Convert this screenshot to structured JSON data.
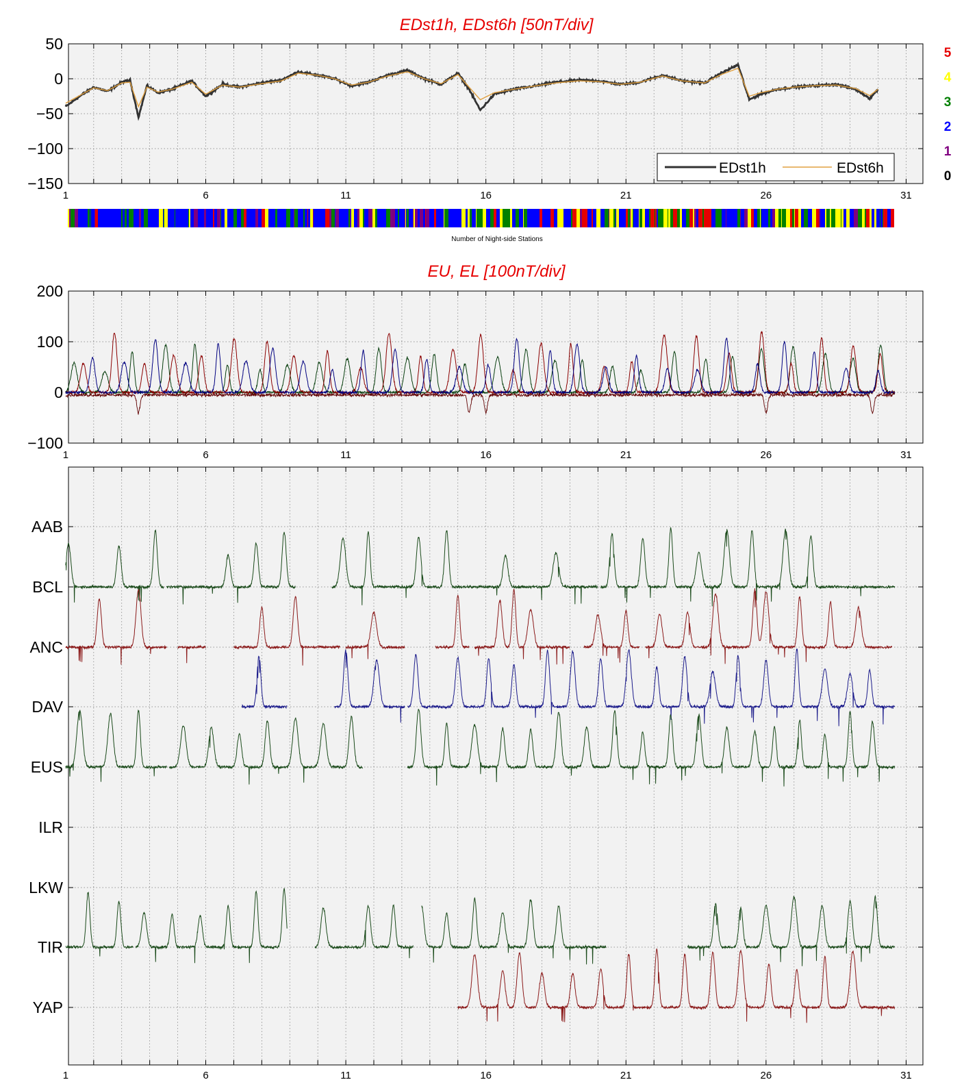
{
  "chart_data": [
    {
      "type": "line",
      "title": "EDst1h, EDst6h [50nT/div]",
      "ylim": [
        -150,
        50
      ],
      "yticks": [
        "50",
        "0",
        "−50",
        "−100",
        "−150"
      ],
      "xlim": [
        1,
        31
      ],
      "xticks": [
        "1",
        "6",
        "11",
        "16",
        "21",
        "26",
        "31"
      ],
      "grid": true,
      "legend": {
        "position": "bottom-right",
        "entries": [
          "EDst1h",
          "EDst6h"
        ]
      },
      "series": [
        {
          "name": "EDst1h",
          "color": "#333333",
          "x": [
            1,
            1.5,
            2,
            2.5,
            3,
            3.3,
            3.6,
            3.9,
            4.3,
            4.8,
            5.5,
            6,
            6.6,
            7.2,
            8,
            8.7,
            9.3,
            10,
            10.6,
            11.2,
            11.8,
            12.5,
            13.2,
            13.8,
            14.4,
            15,
            15.4,
            15.8,
            16.3,
            17,
            17.8,
            18.5,
            19.3,
            20,
            20.8,
            21.5,
            22.3,
            23,
            23.8,
            24.4,
            25,
            25.4,
            25.8,
            26.4,
            27,
            27.7,
            28.5,
            29.2,
            29.7,
            30
          ],
          "y": [
            -40,
            -25,
            -12,
            -18,
            -5,
            -2,
            -55,
            -10,
            -20,
            -15,
            -3,
            -25,
            -8,
            -12,
            -6,
            -2,
            10,
            5,
            0,
            -10,
            -5,
            5,
            12,
            0,
            -8,
            8,
            -15,
            -45,
            -22,
            -15,
            -10,
            -5,
            -2,
            -3,
            -8,
            -5,
            5,
            -3,
            -6,
            8,
            20,
            -30,
            -22,
            -15,
            -12,
            -10,
            -8,
            -15,
            -28,
            -15
          ]
        },
        {
          "name": "EDst6h",
          "color": "#e0a040",
          "x": [
            1,
            1.5,
            2,
            2.5,
            3,
            3.3,
            3.6,
            3.9,
            4.3,
            4.8,
            5.5,
            6,
            6.6,
            7.2,
            8,
            8.7,
            9.3,
            10,
            10.6,
            11.2,
            11.8,
            12.5,
            13.2,
            13.8,
            14.4,
            15,
            15.4,
            15.8,
            16.3,
            17,
            17.8,
            18.5,
            19.3,
            20,
            20.8,
            21.5,
            22.3,
            23,
            23.8,
            24.4,
            25,
            25.4,
            25.8,
            26.4,
            27,
            27.7,
            28.5,
            29.2,
            29.7,
            30
          ],
          "y": [
            -35,
            -24,
            -13,
            -17,
            -6,
            -5,
            -40,
            -12,
            -19,
            -15,
            -5,
            -22,
            -9,
            -12,
            -7,
            -3,
            8,
            5,
            0,
            -9,
            -5,
            4,
            10,
            0,
            -7,
            6,
            -12,
            -30,
            -20,
            -15,
            -10,
            -6,
            -3,
            -4,
            -8,
            -5,
            4,
            -3,
            -6,
            6,
            15,
            -25,
            -20,
            -15,
            -12,
            -10,
            -9,
            -14,
            -24,
            -15
          ]
        }
      ]
    },
    {
      "type": "heatmap",
      "xlabel": "Number of Night-side Stations",
      "colorbar": [
        {
          "label": "5",
          "color": "#e60000"
        },
        {
          "label": "4",
          "color": "#ffff00"
        },
        {
          "label": "3",
          "color": "#008000"
        },
        {
          "label": "2",
          "color": "#0000ff"
        },
        {
          "label": "1",
          "color": "#800080"
        },
        {
          "label": "0",
          "color": "#000000"
        }
      ]
    },
    {
      "type": "line",
      "title": "EU, EL   [100nT/div]",
      "ylim": [
        -100,
        200
      ],
      "yticks": [
        "200",
        "100",
        "0",
        "−100"
      ],
      "xlim": [
        1,
        31
      ],
      "xticks": [
        "1",
        "6",
        "11",
        "16",
        "21",
        "26",
        "31"
      ],
      "grid": true,
      "series": [
        {
          "color": "#0a4010",
          "peak_range": [
            40,
            100
          ]
        },
        {
          "color": "#8b0000",
          "peak_range": [
            40,
            120
          ]
        },
        {
          "color": "#000080",
          "peak_range": [
            40,
            110
          ]
        }
      ]
    },
    {
      "type": "line",
      "xlim": [
        1,
        31
      ],
      "xticks": [
        "1",
        "6",
        "11",
        "16",
        "21",
        "26",
        "31"
      ],
      "grid": true,
      "stations": [
        "AAB",
        "BCL",
        "ANC",
        "DAV",
        "EUS",
        "ILR",
        "LKW",
        "TIR",
        "YAP"
      ],
      "series": [
        {
          "station": "BCL",
          "color": "#1a4a1a",
          "segments": [
            [
              1,
              4.5
            ],
            [
              4.6,
              9.2
            ],
            [
              10.5,
              20
            ],
            [
              20.1,
              30.6
            ]
          ],
          "peaks": [
            1.1,
            2.9,
            4.2,
            6.8,
            7.8,
            8.8,
            10.9,
            11.8,
            13.6,
            14.6,
            16.7,
            18.5,
            20.5,
            21.6,
            22.6,
            23.6,
            24.6,
            25.5,
            26.7,
            27.6
          ]
        },
        {
          "station": "ANC",
          "color": "#8b1a1a",
          "segments": [
            [
              1,
              4.6
            ],
            [
              5,
              6
            ],
            [
              7,
              10.8
            ],
            [
              11,
              13.1
            ],
            [
              14.2,
              15.4
            ],
            [
              15.6,
              19
            ],
            [
              19.5,
              21.5
            ],
            [
              21.7,
              30.5
            ]
          ],
          "peaks": [
            2.2,
            3.6,
            8,
            9.2,
            12,
            15,
            16.5,
            17,
            17.6,
            20,
            21,
            22.2,
            23.2,
            24.2,
            25.6,
            26,
            27.2,
            28.3,
            29.3
          ]
        },
        {
          "station": "DAV",
          "color": "#1a1a8a",
          "segments": [
            [
              7.3,
              8.9
            ],
            [
              10.6,
              13.1
            ],
            [
              13.2,
              30.6
            ]
          ],
          "peaks": [
            7.9,
            10.1,
            11,
            12.1,
            13.5,
            15,
            16.1,
            17,
            18.2,
            19.1,
            20.1,
            21.1,
            22.1,
            23.1,
            24.1,
            25,
            26,
            27.1,
            28.1,
            29,
            29.7
          ]
        },
        {
          "station": "EUS",
          "color": "#1a4a1a",
          "segments": [
            [
              1,
              4.6
            ],
            [
              4.7,
              11.6
            ],
            [
              13.2,
              30.6
            ]
          ],
          "peaks": [
            1.5,
            2.6,
            3.6,
            5.2,
            6.2,
            7.2,
            8.2,
            9.2,
            10.2,
            11.2,
            13.6,
            14.6,
            15.6,
            16.6,
            17.6,
            18.6,
            19.6,
            20.6,
            21.6,
            22.6,
            23.6,
            24.6,
            25.6,
            26.3,
            27.2,
            28.1,
            29,
            29.8
          ]
        },
        {
          "station": "TIR",
          "color": "#1a4a1a",
          "segments": [
            [
              1,
              3.4
            ],
            [
              3.5,
              8.9
            ],
            [
              9.9,
              13.4
            ],
            [
              13.7,
              20.3
            ],
            [
              23.2,
              30.6
            ]
          ],
          "peaks": [
            1.8,
            2.9,
            3.8,
            4.8,
            5.8,
            6.8,
            7.8,
            8.8,
            10.2,
            11.8,
            12.7,
            13.7,
            14.6,
            15.6,
            16.6,
            17.6,
            18.6,
            24.2,
            25.1,
            26,
            27,
            28,
            29,
            29.9
          ]
        },
        {
          "station": "YAP",
          "color": "#8b1a1a",
          "segments": [
            [
              15,
              30.6
            ]
          ],
          "peaks": [
            15.6,
            16.6,
            17.2,
            18,
            19.1,
            20.1,
            21.1,
            22.1,
            23.1,
            24.1,
            25.1,
            26.1,
            27.1,
            28.1,
            29.1
          ]
        }
      ]
    }
  ]
}
